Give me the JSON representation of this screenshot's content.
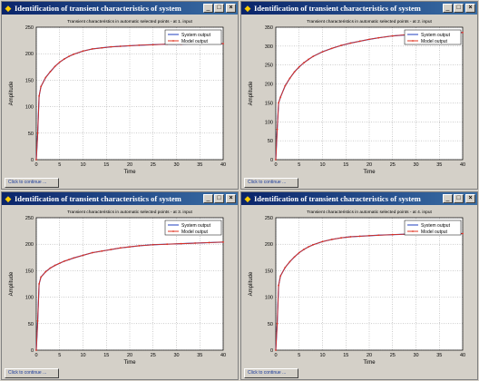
{
  "windows": [
    {
      "title": "Identification of transient characteristics of system",
      "continue_label": "Click to continue ...",
      "controls": {
        "minimize": "_",
        "maximize": "□",
        "close": "×"
      },
      "icon": "matlab-figure-icon",
      "chart_data": {
        "type": "line",
        "title": "Transient characteristics in automatic selected points - at 1. input",
        "xlabel": "Time",
        "ylabel": "Amplitude",
        "xlim": [
          0,
          40
        ],
        "ylim": [
          0,
          250
        ],
        "xticks": [
          0,
          5,
          10,
          15,
          20,
          25,
          30,
          35,
          40
        ],
        "yticks": [
          0,
          50,
          100,
          150,
          200,
          250
        ],
        "grid": true,
        "legend_position": "top-right",
        "series": [
          {
            "name": "System output",
            "color": "#1f3fbf",
            "marker": "none",
            "x": [
              0,
              0.3,
              0.6,
              1,
              2,
              3,
              4,
              5,
              6,
              7,
              8,
              10,
              12,
              14,
              16,
              18,
              20,
              22,
              25,
              28,
              31,
              34,
              37,
              40
            ],
            "y": [
              0,
              50,
              120,
              138,
              155,
              166,
              176,
              184,
              190,
              195,
              199,
              205,
              209,
              211,
              213,
              214,
              215,
              216,
              217,
              218,
              218,
              219,
              219,
              219
            ]
          },
          {
            "name": "Model output",
            "color": "#e0301e",
            "marker": "dot",
            "x": [
              0,
              0.3,
              0.6,
              1,
              2,
              3,
              4,
              5,
              6,
              7,
              8,
              10,
              12,
              14,
              16,
              18,
              20,
              22,
              25,
              28,
              31,
              34,
              37,
              40
            ],
            "y": [
              0,
              50,
              120,
              138,
              155,
              166,
              176,
              184,
              190,
              195,
              199,
              205,
              209,
              211,
              213,
              214,
              215,
              216,
              217,
              218,
              218,
              219,
              219,
              219
            ]
          }
        ]
      }
    },
    {
      "title": "Identification of transient characteristics of system",
      "continue_label": "Click to continue ...",
      "controls": {
        "minimize": "_",
        "maximize": "□",
        "close": "×"
      },
      "icon": "matlab-figure-icon",
      "chart_data": {
        "type": "line",
        "title": "Transient characteristics in automatic selected points - at 2. input",
        "xlabel": "Time",
        "ylabel": "Amplitude",
        "xlim": [
          0,
          40
        ],
        "ylim": [
          0,
          350
        ],
        "xticks": [
          0,
          5,
          10,
          15,
          20,
          25,
          30,
          35,
          40
        ],
        "yticks": [
          0,
          50,
          100,
          150,
          200,
          250,
          300,
          350
        ],
        "grid": true,
        "legend_position": "top-right",
        "series": [
          {
            "name": "System output",
            "color": "#1f3fbf",
            "marker": "none",
            "x": [
              0,
              0.3,
              0.6,
              1,
              2,
              3,
              4,
              5,
              6,
              7,
              8,
              10,
              12,
              14,
              16,
              18,
              20,
              22,
              25,
              28,
              31,
              34,
              37,
              40
            ],
            "y": [
              0,
              80,
              150,
              165,
              195,
              215,
              232,
              245,
              256,
              265,
              273,
              285,
              294,
              302,
              308,
              313,
              318,
              322,
              327,
              330,
              332,
              334,
              335,
              336
            ]
          },
          {
            "name": "Model output",
            "color": "#e0301e",
            "marker": "dot",
            "x": [
              0,
              0.3,
              0.6,
              1,
              2,
              3,
              4,
              5,
              6,
              7,
              8,
              10,
              12,
              14,
              16,
              18,
              20,
              22,
              25,
              28,
              31,
              34,
              37,
              40
            ],
            "y": [
              0,
              80,
              150,
              165,
              195,
              215,
              232,
              245,
              256,
              265,
              273,
              285,
              294,
              302,
              308,
              313,
              318,
              322,
              327,
              330,
              332,
              334,
              335,
              336
            ]
          }
        ]
      }
    },
    {
      "title": "Identification of transient characteristics of system",
      "continue_label": "Click to continue ...",
      "controls": {
        "minimize": "_",
        "maximize": "□",
        "close": "×"
      },
      "icon": "matlab-figure-icon",
      "chart_data": {
        "type": "line",
        "title": "Transient characteristics in automatic selected points - at 3. input",
        "xlabel": "Time",
        "ylabel": "Amplitude",
        "xlim": [
          0,
          40
        ],
        "ylim": [
          0,
          250
        ],
        "xticks": [
          0,
          5,
          10,
          15,
          20,
          25,
          30,
          35,
          40
        ],
        "yticks": [
          0,
          50,
          100,
          150,
          200,
          250
        ],
        "grid": true,
        "legend_position": "top-right",
        "series": [
          {
            "name": "System output",
            "color": "#1f3fbf",
            "marker": "none",
            "x": [
              0,
              0.3,
              0.6,
              1,
              2,
              3,
              4,
              5,
              6,
              7,
              8,
              10,
              12,
              14,
              16,
              18,
              20,
              22,
              25,
              28,
              31,
              34,
              37,
              40
            ],
            "y": [
              0,
              55,
              125,
              138,
              148,
              155,
              160,
              164,
              168,
              171,
              174,
              179,
              184,
              187,
              190,
              193,
              195,
              197,
              199,
              200,
              201,
              202,
              203,
              204
            ]
          },
          {
            "name": "Model output",
            "color": "#e0301e",
            "marker": "dot",
            "x": [
              0,
              0.3,
              0.6,
              1,
              2,
              3,
              4,
              5,
              6,
              7,
              8,
              10,
              12,
              14,
              16,
              18,
              20,
              22,
              25,
              28,
              31,
              34,
              37,
              40
            ],
            "y": [
              0,
              55,
              125,
              138,
              148,
              155,
              160,
              164,
              168,
              171,
              174,
              179,
              184,
              187,
              190,
              193,
              195,
              197,
              199,
              200,
              201,
              202,
              203,
              204
            ]
          }
        ]
      }
    },
    {
      "title": "Identification of transient characteristics of system",
      "continue_label": "Click to continue ...",
      "controls": {
        "minimize": "_",
        "maximize": "□",
        "close": "×"
      },
      "icon": "matlab-figure-icon",
      "chart_data": {
        "type": "line",
        "title": "Transient characteristics in automatic selected points - at 4. input",
        "xlabel": "Time",
        "ylabel": "Amplitude",
        "xlim": [
          0,
          40
        ],
        "ylim": [
          0,
          250
        ],
        "xticks": [
          0,
          5,
          10,
          15,
          20,
          25,
          30,
          35,
          40
        ],
        "yticks": [
          0,
          50,
          100,
          150,
          200,
          250
        ],
        "grid": true,
        "legend_position": "top-right",
        "series": [
          {
            "name": "System output",
            "color": "#1f3fbf",
            "marker": "none",
            "x": [
              0,
              0.3,
              0.6,
              1,
              2,
              3,
              4,
              5,
              6,
              7,
              8,
              10,
              12,
              14,
              16,
              18,
              20,
              22,
              25,
              28,
              31,
              34,
              37,
              40
            ],
            "y": [
              0,
              50,
              122,
              140,
              156,
              167,
              176,
              184,
              190,
              195,
              199,
              205,
              209,
              212,
              214,
              215,
              216,
              217,
              218,
              219,
              219,
              220,
              220,
              220
            ]
          },
          {
            "name": "Model output",
            "color": "#e0301e",
            "marker": "dot",
            "x": [
              0,
              0.3,
              0.6,
              1,
              2,
              3,
              4,
              5,
              6,
              7,
              8,
              10,
              12,
              14,
              16,
              18,
              20,
              22,
              25,
              28,
              31,
              34,
              37,
              40
            ],
            "y": [
              0,
              50,
              122,
              140,
              156,
              167,
              176,
              184,
              190,
              195,
              199,
              205,
              209,
              212,
              214,
              215,
              216,
              217,
              218,
              219,
              219,
              220,
              220,
              220
            ]
          }
        ]
      }
    }
  ]
}
